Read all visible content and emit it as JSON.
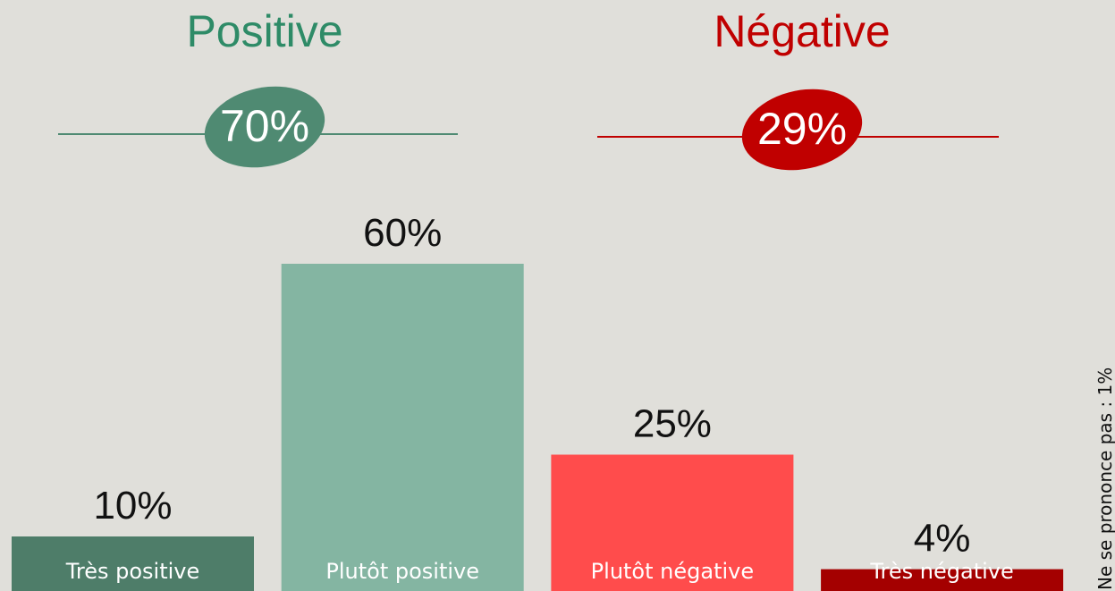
{
  "chart_data": {
    "type": "bar",
    "categories": [
      "Très positive",
      "Plutôt positive",
      "Plutôt négative",
      "Très négative"
    ],
    "values": [
      10,
      60,
      25,
      4
    ],
    "value_labels": [
      "10%",
      "60%",
      "25%",
      "4%"
    ],
    "colors": [
      "#4e7d69",
      "#84b5a2",
      "#ff4c4c",
      "#a40000"
    ],
    "groups": [
      {
        "name": "Positive",
        "value": 70,
        "label": "70%",
        "color": "#4f8a72",
        "title_color": "#2e8b67"
      },
      {
        "name": "Négative",
        "value": 29,
        "label": "29%",
        "color": "#c00000",
        "title_color": "#c00000"
      }
    ],
    "note": "Ne se prononce pas : 1%"
  }
}
